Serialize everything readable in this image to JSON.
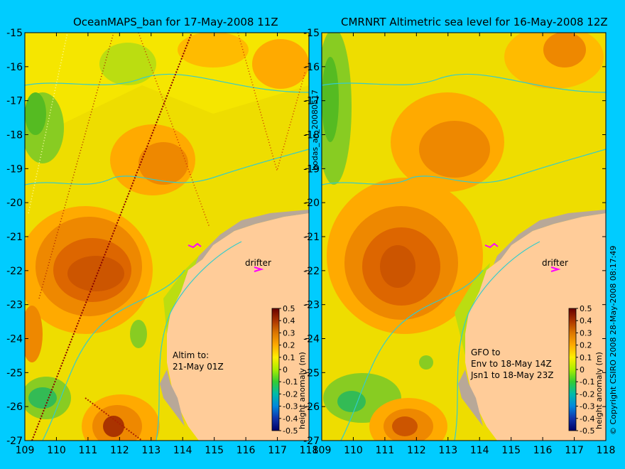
{
  "panels": [
    {
      "title": "OceanMAPS_ban for 17-May-2008 11Z",
      "drifter_label": "drifter",
      "note_lines": [
        "Altim to:",
        "21-May 01Z"
      ]
    },
    {
      "title": "CMRNRT Altimetric sea level  for 16-May-2008 12Z",
      "drifter_label": "drifter",
      "note_lines": [
        "GFO to",
        "Env to 18-May 14Z",
        "Jsn1 to 18-May 23Z"
      ]
    }
  ],
  "axes": {
    "x_ticks": [
      "109",
      "110",
      "111",
      "112",
      "113",
      "114",
      "115",
      "116",
      "117",
      "118"
    ],
    "y_ticks": [
      "-15",
      "-16",
      "-17",
      "-18",
      "-19",
      "-20",
      "-21",
      "-22",
      "-23",
      "-24",
      "-25",
      "-26",
      "-27"
    ],
    "x_range": [
      109,
      118
    ],
    "y_range": [
      -27,
      -15
    ]
  },
  "colorbar": {
    "label": "height anomaly (m)",
    "ticks": [
      "0.5",
      "0.4",
      "0.3",
      "0.2",
      "0.1",
      "0",
      "-0.1",
      "-0.2",
      "-0.3",
      "-0.4",
      "-0.5"
    ]
  },
  "side_labels": {
    "middle": "bodas_an_20080517",
    "right": "© Copyright CSIRO 2008   28-May-2008 08:17:49"
  },
  "colors": {
    "background": "#00ccff",
    "land": "#ffcc99",
    "coast_shelf": "#b8a898",
    "contour": "#33cccc",
    "drifter": "#ff00ff"
  }
}
